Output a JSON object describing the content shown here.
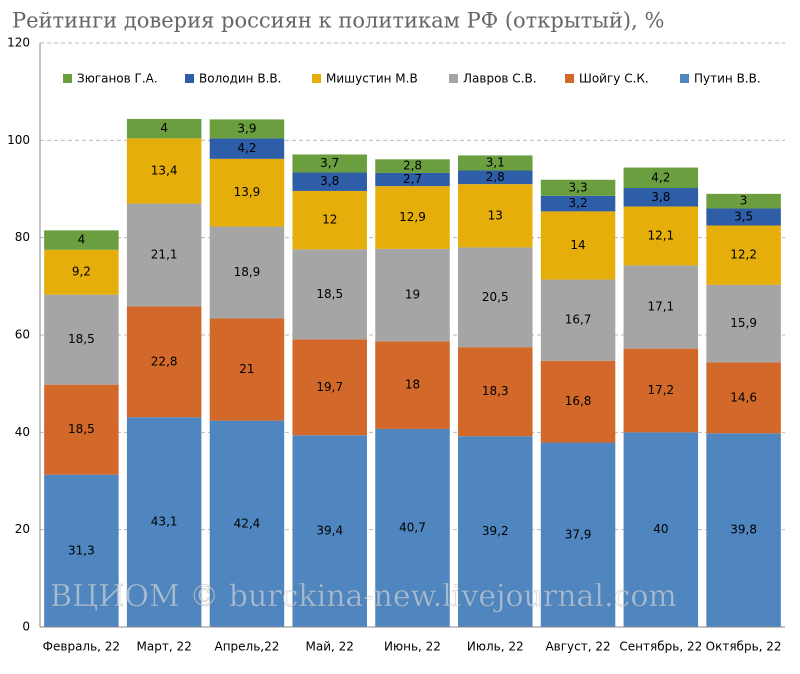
{
  "chart_data": {
    "type": "stacked_bar",
    "title": "Рейтинги доверия россиян к политикам РФ (открытый), %",
    "annotation": "ВЦИОМ © burckina-new.livejournal.com",
    "categories": [
      "Февраль, 22",
      "Март, 22",
      "Апрель,22",
      "Май, 22",
      "Июнь, 22",
      "Июль, 22",
      "Август, 22",
      "Сентябрь, 22",
      "Октябрь, 22"
    ],
    "series": [
      {
        "name": "Путин В.В.",
        "color": "#4f86c0",
        "values": [
          31.3,
          43.1,
          42.4,
          39.4,
          40.7,
          39.2,
          37.9,
          40,
          39.8
        ],
        "value_labels": [
          "31,3",
          "43,1",
          "42,4",
          "39,4",
          "40,7",
          "39,2",
          "37,9",
          "40",
          "39,8"
        ]
      },
      {
        "name": "Шойгу С.К.",
        "color": "#d2692b",
        "values": [
          18.5,
          22.8,
          21,
          19.7,
          18,
          18.3,
          16.8,
          17.2,
          14.6
        ],
        "value_labels": [
          "18,5",
          "22,8",
          "21",
          "19,7",
          "18",
          "18,3",
          "16,8",
          "17,2",
          "14,6"
        ]
      },
      {
        "name": "Лавров С.В.",
        "color": "#a5a5a5",
        "values": [
          18.5,
          21.1,
          18.9,
          18.5,
          19,
          20.5,
          16.7,
          17.1,
          15.9
        ],
        "value_labels": [
          "18,5",
          "21,1",
          "18,9",
          "18,5",
          "19",
          "20,5",
          "16,7",
          "17,1",
          "15,9"
        ]
      },
      {
        "name": "Мишустин М.В",
        "color": "#e6ae0a",
        "values": [
          9.2,
          13.4,
          13.9,
          12,
          12.9,
          13,
          14,
          12.1,
          12.2
        ],
        "value_labels": [
          "9,2",
          "13,4",
          "13,9",
          "12",
          "12,9",
          "13",
          "14",
          "12,1",
          "12,2"
        ]
      },
      {
        "name": "Володин В.В.",
        "color": "#2f5ea8",
        "values": [
          null,
          null,
          4.2,
          3.8,
          2.7,
          2.8,
          3.2,
          3.8,
          3.5
        ],
        "value_labels": [
          null,
          null,
          "4,2",
          "3,8",
          "2,7",
          "2,8",
          "3,2",
          "3,8",
          "3,5"
        ]
      },
      {
        "name": "Зюганов Г.А.",
        "color": "#6a9e3f",
        "values": [
          4,
          4,
          3.9,
          3.7,
          2.8,
          3.1,
          3.3,
          4.2,
          3
        ],
        "value_labels": [
          "4",
          "4",
          "3,9",
          "3,7",
          "2,8",
          "3,1",
          "3,3",
          "4,2",
          "3"
        ]
      }
    ],
    "ylim": [
      0,
      120
    ],
    "yticks": [
      0,
      20,
      40,
      60,
      80,
      100,
      120
    ],
    "grid": true
  }
}
